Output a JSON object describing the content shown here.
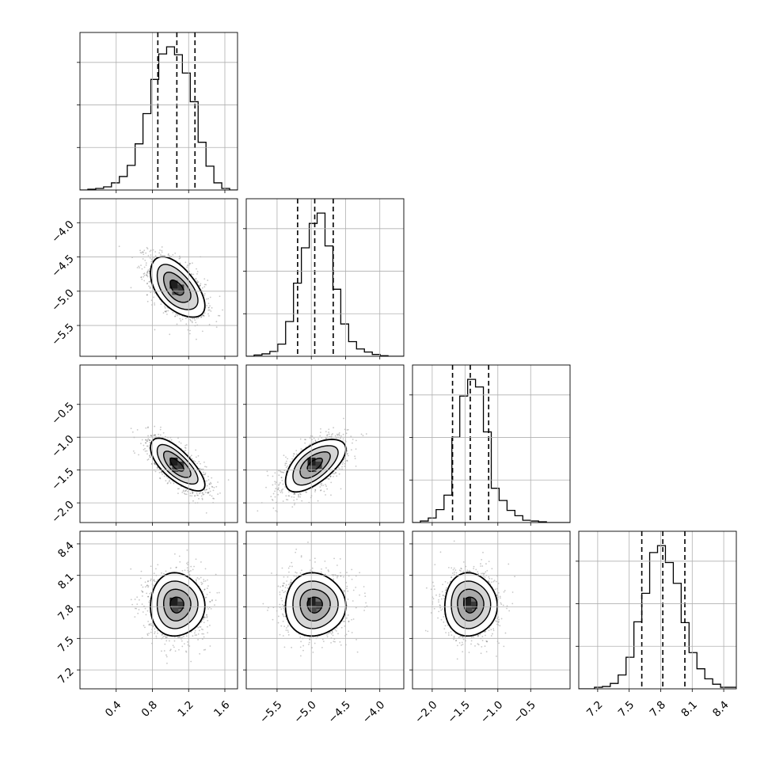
{
  "chart_data": {
    "type": "corner",
    "parameters": [
      {
        "id": "p1",
        "range": [
          0.0,
          1.74
        ],
        "ticks": [
          0.4,
          0.8,
          1.2,
          1.6
        ],
        "tick_labels": [
          "0.4",
          "0.8",
          "1.2",
          "1.6"
        ],
        "quantiles": [
          0.86,
          1.07,
          1.27
        ],
        "histogram": {
          "bin_edges": [
            0.0,
            0.087,
            0.174,
            0.261,
            0.348,
            0.435,
            0.522,
            0.609,
            0.696,
            0.783,
            0.87,
            0.957,
            1.044,
            1.131,
            1.218,
            1.305,
            1.392,
            1.479,
            1.566,
            1.653,
            1.74
          ],
          "counts": [
            0,
            1,
            2,
            4,
            9,
            17,
            31,
            58,
            96,
            139,
            171,
            180,
            170,
            147,
            111,
            60,
            30,
            9,
            2,
            0
          ]
        }
      },
      {
        "id": "p2",
        "range": [
          -5.95,
          -3.65
        ],
        "ticks": [
          -5.5,
          -5.0,
          -4.5,
          -4.0
        ],
        "tick_labels": [
          "−5.5",
          "−5.0",
          "−4.5",
          "−4.0"
        ],
        "quantiles": [
          -5.2,
          -4.95,
          -4.68
        ],
        "histogram": {
          "bin_edges": [
            -5.95,
            -5.835,
            -5.72,
            -5.605,
            -5.49,
            -5.375,
            -5.26,
            -5.145,
            -5.03,
            -4.915,
            -4.8,
            -4.685,
            -4.57,
            -4.455,
            -4.34,
            -4.225,
            -4.11,
            -3.995,
            -3.88,
            -3.765,
            -3.65
          ],
          "counts": [
            0,
            2,
            4,
            8,
            20,
            57,
            120,
            178,
            218,
            235,
            181,
            110,
            53,
            24,
            12,
            7,
            3,
            1,
            0,
            0
          ]
        }
      },
      {
        "id": "p3",
        "range": [
          -2.3,
          0.1
        ],
        "ticks": [
          -2.0,
          -1.5,
          -1.0,
          -0.5
        ],
        "tick_labels": [
          "−2.0",
          "−1.5",
          "−1.0",
          "−0.5"
        ],
        "quantiles": [
          -1.69,
          -1.42,
          -1.14
        ],
        "histogram": {
          "bin_edges": [
            -2.3,
            -2.18,
            -2.06,
            -1.94,
            -1.82,
            -1.7,
            -1.58,
            -1.46,
            -1.34,
            -1.22,
            -1.1,
            -0.98,
            -0.86,
            -0.74,
            -0.62,
            -0.5,
            -0.38,
            -0.26,
            -0.14,
            -0.02,
            0.1
          ],
          "counts": [
            0,
            2,
            6,
            17,
            36,
            112,
            166,
            188,
            178,
            119,
            45,
            29,
            16,
            9,
            3,
            2,
            1,
            0,
            0,
            0
          ]
        }
      },
      {
        "id": "p4",
        "range": [
          7.02,
          8.52
        ],
        "ticks": [
          7.2,
          7.5,
          7.8,
          8.1,
          8.4
        ],
        "tick_labels": [
          "7.2",
          "7.5",
          "7.8",
          "8.1",
          "8.4"
        ],
        "quantiles": [
          7.62,
          7.82,
          8.03
        ],
        "histogram": {
          "bin_edges": [
            7.02,
            7.095,
            7.17,
            7.245,
            7.32,
            7.395,
            7.47,
            7.545,
            7.62,
            7.695,
            7.77,
            7.845,
            7.92,
            7.995,
            8.07,
            8.145,
            8.22,
            8.295,
            8.37,
            8.445,
            8.52
          ],
          "counts": [
            0,
            0,
            2,
            3,
            7,
            18,
            41,
            87,
            124,
            177,
            186,
            164,
            137,
            86,
            47,
            26,
            13,
            6,
            2,
            2
          ]
        }
      }
    ],
    "pairs": [
      {
        "x": "p1",
        "y": "p2",
        "center": [
          1.07,
          -4.95
        ],
        "sd": [
          0.15,
          0.22
        ],
        "rho": -0.55
      },
      {
        "x": "p1",
        "y": "p3",
        "center": [
          1.07,
          -1.42
        ],
        "sd": [
          0.15,
          0.2
        ],
        "rho": -0.72
      },
      {
        "x": "p2",
        "y": "p3",
        "center": [
          -4.95,
          -1.42
        ],
        "sd": [
          0.22,
          0.2
        ],
        "rho": 0.6
      },
      {
        "x": "p1",
        "y": "p4",
        "center": [
          1.07,
          7.82
        ],
        "sd": [
          0.15,
          0.15
        ],
        "rho": 0.0
      },
      {
        "x": "p2",
        "y": "p4",
        "center": [
          -4.95,
          7.82
        ],
        "sd": [
          0.22,
          0.15
        ],
        "rho": 0.0
      },
      {
        "x": "p3",
        "y": "p4",
        "center": [
          -1.42,
          7.82
        ],
        "sd": [
          0.2,
          0.15
        ],
        "rho": 0.0
      }
    ],
    "contour_levels_sigma": [
      0.5,
      1.0,
      1.5,
      2.0
    ],
    "grid": true,
    "title": "",
    "xlabel": "",
    "ylabel": ""
  }
}
